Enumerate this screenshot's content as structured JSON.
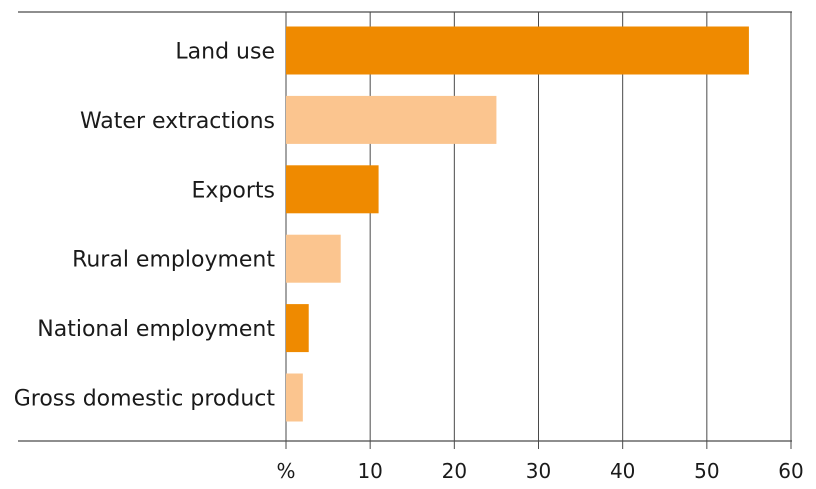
{
  "chart_data": {
    "type": "bar",
    "orientation": "horizontal",
    "categories": [
      "Land use",
      "Water extractions",
      "Exports",
      "Rural employment",
      "National employment",
      "Gross domestic product"
    ],
    "values": [
      55,
      25,
      11,
      6.5,
      2.7,
      2
    ],
    "bar_colors": [
      "#ef8a00",
      "#fbc58f",
      "#ef8a00",
      "#fbc58f",
      "#ef8a00",
      "#fbc58f"
    ],
    "xlim": [
      0,
      60
    ],
    "xticks": [
      10,
      20,
      30,
      40,
      50,
      60
    ],
    "unit_label": "%",
    "grid": true,
    "title": "",
    "xlabel": "",
    "ylabel": ""
  }
}
